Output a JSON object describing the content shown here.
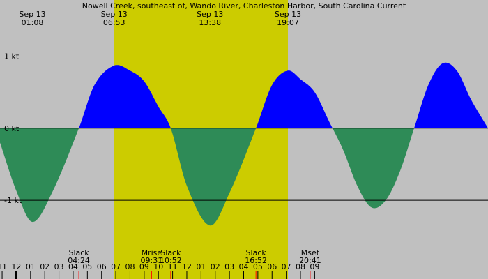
{
  "colors": {
    "night": "#c0c0c0",
    "day": "#cccc00",
    "flood": "#0000ff",
    "ebb": "#2e8b57",
    "line": "#000000",
    "event_tick": "#ff0000"
  },
  "chart_data": {
    "type": "area",
    "title": "Nowell Creek, southeast of, Wando River, Charleston Harbor, South Carolina Current",
    "xlabel": "",
    "ylabel": "",
    "units": "kt",
    "xlim": [
      -1.15,
      33.2
    ],
    "ylim": [
      -1.9,
      1.78
    ],
    "y_ticks": [
      {
        "value": 1,
        "label": "1 kt"
      },
      {
        "value": 0,
        "label": "0 kt"
      },
      {
        "value": -1,
        "label": "-1 kt"
      }
    ],
    "x_ticks": [
      {
        "t": -1,
        "label": "11"
      },
      {
        "t": 0,
        "label": "12"
      },
      {
        "t": 1,
        "label": "01"
      },
      {
        "t": 2,
        "label": "02"
      },
      {
        "t": 3,
        "label": "03"
      },
      {
        "t": 4,
        "label": "04"
      },
      {
        "t": 5,
        "label": "05"
      },
      {
        "t": 6,
        "label": "06"
      },
      {
        "t": 7,
        "label": "07"
      },
      {
        "t": 8,
        "label": "08"
      },
      {
        "t": 9,
        "label": "09"
      },
      {
        "t": 10,
        "label": "10"
      },
      {
        "t": 11,
        "label": "11"
      },
      {
        "t": 12,
        "label": "12"
      },
      {
        "t": 13,
        "label": "01"
      },
      {
        "t": 14,
        "label": "02"
      },
      {
        "t": 15,
        "label": "03"
      },
      {
        "t": 16,
        "label": "04"
      },
      {
        "t": 17,
        "label": "05"
      },
      {
        "t": 18,
        "label": "06"
      },
      {
        "t": 19,
        "label": "07"
      },
      {
        "t": 20,
        "label": "08"
      },
      {
        "t": 21,
        "label": "09"
      }
    ],
    "midnight_tick": 0,
    "daylight": [
      {
        "start": 6.883,
        "end": 19.117
      }
    ],
    "extrema": [
      {
        "date": "Sep 13",
        "time": "01:08",
        "t": 1.133,
        "value": -1.3
      },
      {
        "date": "Sep 13",
        "time": "06:53",
        "t": 6.883,
        "value": 0.87
      },
      {
        "date": "Sep 13",
        "time": "13:38",
        "t": 13.633,
        "value": -1.35
      },
      {
        "date": "Sep 13",
        "time": "19:07",
        "t": 19.117,
        "value": 0.8
      }
    ],
    "events": [
      {
        "label": "Slack",
        "time": "04:24",
        "t": 4.4
      },
      {
        "label": "Mrise",
        "time": "09:31",
        "t": 9.517
      },
      {
        "label": "Slack",
        "time": "10:52",
        "t": 10.867
      },
      {
        "label": "Slack",
        "time": "16:52",
        "t": 16.867
      },
      {
        "label": "Mset",
        "time": "20:41",
        "t": 20.683
      }
    ],
    "series": [
      {
        "x": [
          -1.15,
          0.0,
          1.133,
          2.5,
          4.4,
          5.5,
          6.883,
          8.0,
          9.0,
          10.0,
          10.867,
          12.0,
          13.633,
          15.0,
          16.867,
          18.0,
          19.117,
          20.0,
          21.0,
          22.0,
          23.0,
          24.0,
          25.0,
          26.0,
          27.0,
          28.0,
          29.0,
          30.0,
          31.0,
          32.0,
          33.2
        ],
        "y": [
          -0.2,
          -0.87,
          -1.3,
          -0.9,
          0.0,
          0.6,
          0.87,
          0.8,
          0.65,
          0.3,
          0.0,
          -0.8,
          -1.35,
          -0.9,
          0.0,
          0.6,
          0.8,
          0.68,
          0.5,
          0.1,
          -0.3,
          -0.8,
          -1.1,
          -1.0,
          -0.6,
          0.0,
          0.6,
          0.9,
          0.8,
          0.4,
          0.0
        ]
      }
    ]
  }
}
